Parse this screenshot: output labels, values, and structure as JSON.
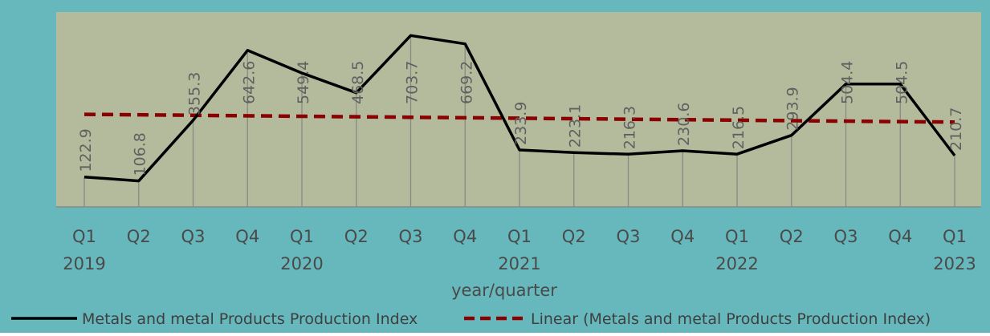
{
  "colors": {
    "outer_bg": "#66b8bc",
    "plot_bg": "#b4bb9c",
    "main_line": "#000000",
    "trend_line": "#8b0000",
    "drop_line": "#8a8a84",
    "label_text": "#606060",
    "axis_text": "#4a4a4a"
  },
  "chart_data": {
    "type": "line",
    "title": "",
    "xlabel": "year/quarter",
    "ylabel": "",
    "ylim": [
      0,
      800
    ],
    "grid": false,
    "legend_position": "bottom",
    "categories": [
      "Q1 2019",
      "Q2 2019",
      "Q3 2019",
      "Q4 2019",
      "Q1 2020",
      "Q2 2020",
      "Q3 2020",
      "Q4 2020",
      "Q1 2021",
      "Q2 2021",
      "Q3 2021",
      "Q4 2021",
      "Q1 2022",
      "Q2 2022",
      "Q3 2022",
      "Q4 2022",
      "Q1 2023"
    ],
    "quarter_labels": [
      "Q1",
      "Q2",
      "Q3",
      "Q4",
      "Q1",
      "Q2",
      "Q3",
      "Q4",
      "Q1",
      "Q2",
      "Q3",
      "Q4",
      "Q1",
      "Q2",
      "Q3",
      "Q4",
      "Q1"
    ],
    "year_labels": [
      {
        "index": 0,
        "label": "2019"
      },
      {
        "index": 4,
        "label": "2020"
      },
      {
        "index": 8,
        "label": "2021"
      },
      {
        "index": 12,
        "label": "2022"
      },
      {
        "index": 16,
        "label": "2023"
      }
    ],
    "series": [
      {
        "name": "Metals and metal Products Production Index",
        "values": [
          122.9,
          106.8,
          355.3,
          642.6,
          549.4,
          468.5,
          703.7,
          669.2,
          233.9,
          223.1,
          216.3,
          230.6,
          216.5,
          293.9,
          504.4,
          504.5,
          210.7
        ],
        "data_labels": [
          "122.9",
          "106.8",
          "355.3",
          "642.6",
          "549.4",
          "468.5",
          "703.7",
          "669.2",
          "233.9",
          "223.1",
          "216.3",
          "230.6",
          "216.5",
          "293.9",
          "504.4",
          "504.5",
          "210.7"
        ]
      }
    ],
    "trendline": {
      "name": "Linear (Metals and metal Products Production Index)",
      "type": "linear",
      "start_value": 380,
      "end_value": 348
    }
  }
}
